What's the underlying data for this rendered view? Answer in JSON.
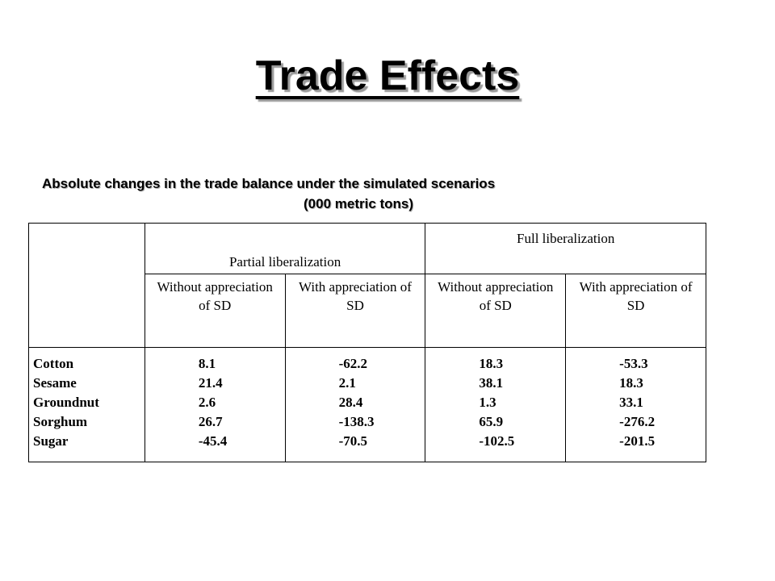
{
  "title": "Trade Effects",
  "caption": {
    "line1": "Absolute changes in the trade balance under the simulated scenarios",
    "line2": "(000 metric tons)"
  },
  "table": {
    "scenario_headers": [
      "Partial liberalization",
      "Full liberalization"
    ],
    "sub_headers": [
      "Without appreciation of SD",
      "With appreciation of SD",
      "Without appreciation of SD",
      "With appreciation of SD"
    ],
    "products": [
      "Cotton",
      "Sesame",
      "Groundnut",
      "Sorghum",
      "Sugar"
    ],
    "columns": [
      [
        "8.1",
        "21.4",
        "2.6",
        "26.7",
        "-45.4"
      ],
      [
        "-62.2",
        "2.1",
        "28.4",
        "-138.3",
        "-70.5"
      ],
      [
        "18.3",
        "38.1",
        "1.3",
        "65.9",
        "-102.5"
      ],
      [
        "-53.3",
        "18.3",
        "33.1",
        "-276.2",
        "-201.5"
      ]
    ]
  }
}
